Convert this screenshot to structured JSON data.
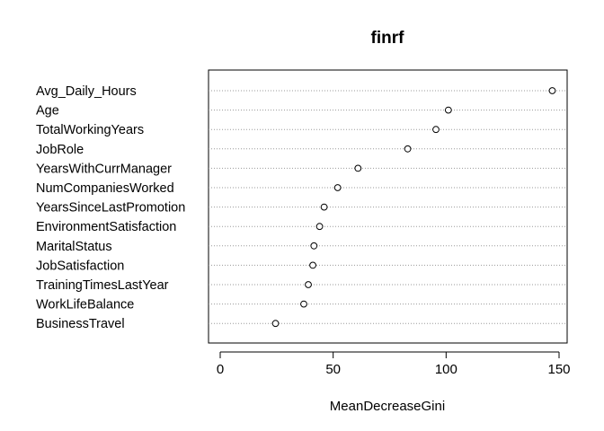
{
  "chart_data": {
    "type": "scatter",
    "title": "finrf",
    "xlabel": "MeanDecreaseGini",
    "ylabel": "",
    "xlim": [
      -5,
      152
    ],
    "xticks": [
      0,
      50,
      100,
      150
    ],
    "grid": "dotted horizontal",
    "legend": "none",
    "categories": [
      "Avg_Daily_Hours",
      "Age",
      "TotalWorkingYears",
      "JobRole",
      "YearsWithCurrManager",
      "NumCompaniesWorked",
      "YearsSinceLastPromotion",
      "EnvironmentSatisfaction",
      "MaritalStatus",
      "JobSatisfaction",
      "TrainingTimesLastYear",
      "WorkLifeBalance",
      "BusinessTravel"
    ],
    "values": [
      147,
      101,
      95.5,
      83,
      61,
      52,
      46,
      44,
      41.5,
      41,
      39,
      37,
      24.5
    ]
  }
}
